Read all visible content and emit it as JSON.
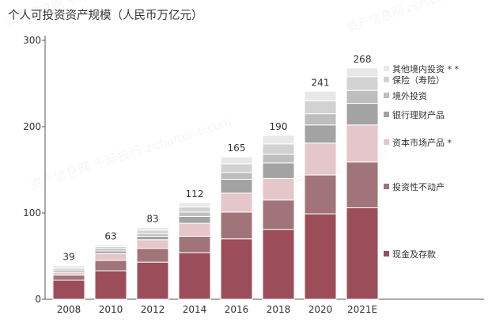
{
  "chart_data": {
    "type": "bar",
    "stacked": true,
    "title": "个人可投资资产规模（人民币万亿元）",
    "xlabel": "",
    "ylabel": "",
    "ylim": [
      0,
      300
    ],
    "yticks": [
      0,
      100,
      200,
      300
    ],
    "categories": [
      "2008",
      "2010",
      "2012",
      "2014",
      "2016",
      "2018",
      "2020",
      "2021E"
    ],
    "totals": [
      39,
      63,
      83,
      112,
      165,
      190,
      241,
      268
    ],
    "series": [
      {
        "name": "现金及存款",
        "color": "#9b4d5a",
        "values": [
          22,
          33,
          43,
          54,
          70,
          81,
          99,
          106
        ]
      },
      {
        "name": "投资性不动产",
        "color": "#a17479",
        "values": [
          6,
          12,
          16,
          19,
          31,
          34,
          45,
          53
        ]
      },
      {
        "name": "资本市场产品 *",
        "color": "#e5c6cb",
        "values": [
          3,
          8,
          10,
          15,
          22,
          25,
          37,
          43
        ]
      },
      {
        "name": "银行理财产品",
        "color": "#a3a3a3",
        "values": [
          2,
          3,
          4,
          8,
          16,
          18,
          21,
          25
        ]
      },
      {
        "name": "境外投资",
        "color": "#bebebe",
        "values": [
          2,
          3,
          3,
          5,
          8,
          10,
          13,
          15
        ]
      },
      {
        "name": "保险（寿险）",
        "color": "#d2d2d2",
        "values": [
          2,
          2,
          4,
          6,
          10,
          12,
          15,
          16
        ]
      },
      {
        "name": "其他境内投资 * *",
        "color": "#e8e8e8",
        "values": [
          2,
          2,
          3,
          5,
          8,
          10,
          11,
          10
        ]
      }
    ],
    "legend": "right",
    "grid": false
  },
  "watermark": "资产信息网 千际投行 zichanxinxi.com"
}
